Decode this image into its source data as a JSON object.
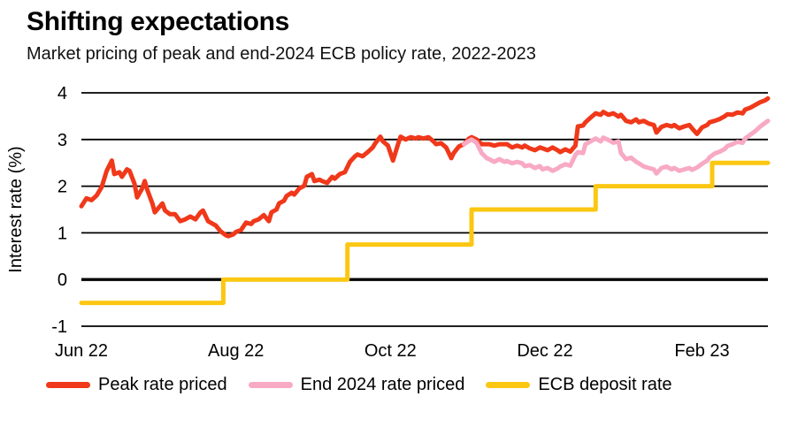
{
  "page": {
    "background": "#ffffff"
  },
  "chart_data": {
    "type": "line",
    "title": "Shifting expectations",
    "subtitle": "Market pricing of peak and end-2024 ECB policy rate, 2022-2023",
    "xlabel": "",
    "ylabel": "Interest rate (%)",
    "x_unit": "days since 2022-06-01",
    "xlim": [
      0,
      271
    ],
    "ylim": [
      -1,
      4
    ],
    "y_ticks": [
      4,
      3,
      2,
      1,
      0,
      -1
    ],
    "x_ticks": [
      {
        "pos": 0,
        "label": "Jun 22"
      },
      {
        "pos": 61,
        "label": "Aug 22"
      },
      {
        "pos": 122,
        "label": "Oct 22"
      },
      {
        "pos": 183,
        "label": "Dec 22"
      },
      {
        "pos": 245,
        "label": "Feb 23"
      }
    ],
    "grid": "horizontal",
    "zero_line_emphasis": true,
    "legend_position": "bottom",
    "draw_order": [
      2,
      0,
      1
    ],
    "series": [
      {
        "name": "Peak rate priced",
        "color": "#F0381A",
        "points": [
          [
            0,
            1.57
          ],
          [
            2,
            1.74
          ],
          [
            4,
            1.7
          ],
          [
            6,
            1.8
          ],
          [
            8,
            1.98
          ],
          [
            10,
            2.33
          ],
          [
            12,
            2.55
          ],
          [
            13,
            2.26
          ],
          [
            15,
            2.3
          ],
          [
            16,
            2.2
          ],
          [
            18,
            2.36
          ],
          [
            19,
            2.33
          ],
          [
            21,
            2.05
          ],
          [
            22,
            1.76
          ],
          [
            24,
            1.95
          ],
          [
            25,
            2.11
          ],
          [
            26,
            1.92
          ],
          [
            28,
            1.63
          ],
          [
            29,
            1.44
          ],
          [
            31,
            1.57
          ],
          [
            32,
            1.63
          ],
          [
            33,
            1.48
          ],
          [
            35,
            1.4
          ],
          [
            37,
            1.4
          ],
          [
            39,
            1.25
          ],
          [
            41,
            1.29
          ],
          [
            43,
            1.35
          ],
          [
            45,
            1.29
          ],
          [
            47,
            1.44
          ],
          [
            48,
            1.48
          ],
          [
            50,
            1.25
          ],
          [
            52,
            1.19
          ],
          [
            53,
            1.16
          ],
          [
            55,
            1.03
          ],
          [
            57,
            0.95
          ],
          [
            58,
            0.93
          ],
          [
            60,
            0.97
          ],
          [
            61,
            1.02
          ],
          [
            63,
            1.06
          ],
          [
            65,
            1.22
          ],
          [
            67,
            1.19
          ],
          [
            68,
            1.25
          ],
          [
            70,
            1.29
          ],
          [
            72,
            1.38
          ],
          [
            74,
            1.25
          ],
          [
            75,
            1.44
          ],
          [
            77,
            1.5
          ],
          [
            78,
            1.63
          ],
          [
            80,
            1.69
          ],
          [
            81,
            1.79
          ],
          [
            83,
            1.86
          ],
          [
            84,
            1.82
          ],
          [
            86,
            1.95
          ],
          [
            88,
            2.01
          ],
          [
            89,
            2.2
          ],
          [
            91,
            2.26
          ],
          [
            92,
            2.11
          ],
          [
            94,
            2.14
          ],
          [
            95,
            2.11
          ],
          [
            97,
            2.07
          ],
          [
            99,
            2.2
          ],
          [
            100,
            2.16
          ],
          [
            102,
            2.26
          ],
          [
            104,
            2.3
          ],
          [
            106,
            2.52
          ],
          [
            108,
            2.64
          ],
          [
            109,
            2.68
          ],
          [
            111,
            2.64
          ],
          [
            113,
            2.73
          ],
          [
            115,
            2.83
          ],
          [
            116,
            2.92
          ],
          [
            118,
            3.06
          ],
          [
            119,
            2.96
          ],
          [
            121,
            2.87
          ],
          [
            123,
            2.55
          ],
          [
            125,
            2.9
          ],
          [
            126,
            3.06
          ],
          [
            128,
            3.0
          ],
          [
            130,
            3.05
          ],
          [
            132,
            3.02
          ],
          [
            133,
            3.05
          ],
          [
            135,
            3.02
          ],
          [
            137,
            3.05
          ],
          [
            139,
            2.96
          ],
          [
            140,
            2.9
          ],
          [
            142,
            2.92
          ],
          [
            144,
            2.83
          ],
          [
            146,
            2.6
          ],
          [
            147,
            2.71
          ],
          [
            149,
            2.85
          ],
          [
            151,
            2.9
          ],
          [
            153,
            3.02
          ],
          [
            154,
            3.05
          ],
          [
            156,
            3.0
          ],
          [
            158,
            2.9
          ],
          [
            161,
            2.9
          ],
          [
            163,
            2.87
          ],
          [
            165,
            2.9
          ],
          [
            168,
            2.9
          ],
          [
            170,
            2.83
          ],
          [
            172,
            2.87
          ],
          [
            174,
            2.83
          ],
          [
            175,
            2.87
          ],
          [
            177,
            2.81
          ],
          [
            179,
            2.77
          ],
          [
            181,
            2.83
          ],
          [
            182,
            2.81
          ],
          [
            184,
            2.77
          ],
          [
            186,
            2.83
          ],
          [
            188,
            2.77
          ],
          [
            189,
            2.73
          ],
          [
            191,
            2.79
          ],
          [
            193,
            2.74
          ],
          [
            195,
            2.87
          ],
          [
            196,
            3.28
          ],
          [
            198,
            3.3
          ],
          [
            199,
            3.37
          ],
          [
            201,
            3.47
          ],
          [
            203,
            3.56
          ],
          [
            205,
            3.53
          ],
          [
            206,
            3.59
          ],
          [
            208,
            3.53
          ],
          [
            210,
            3.56
          ],
          [
            212,
            3.49
          ],
          [
            213,
            3.53
          ],
          [
            215,
            3.4
          ],
          [
            217,
            3.37
          ],
          [
            219,
            3.43
          ],
          [
            220,
            3.37
          ],
          [
            222,
            3.4
          ],
          [
            224,
            3.34
          ],
          [
            226,
            3.31
          ],
          [
            227,
            3.15
          ],
          [
            229,
            3.27
          ],
          [
            231,
            3.31
          ],
          [
            233,
            3.28
          ],
          [
            234,
            3.31
          ],
          [
            236,
            3.24
          ],
          [
            238,
            3.28
          ],
          [
            240,
            3.31
          ],
          [
            241,
            3.24
          ],
          [
            243,
            3.12
          ],
          [
            245,
            3.26
          ],
          [
            247,
            3.31
          ],
          [
            248,
            3.37
          ],
          [
            250,
            3.4
          ],
          [
            252,
            3.44
          ],
          [
            254,
            3.5
          ],
          [
            255,
            3.54
          ],
          [
            257,
            3.53
          ],
          [
            259,
            3.58
          ],
          [
            261,
            3.56
          ],
          [
            262,
            3.64
          ],
          [
            264,
            3.68
          ],
          [
            266,
            3.74
          ],
          [
            268,
            3.8
          ],
          [
            270,
            3.84
          ],
          [
            271,
            3.88
          ]
        ]
      },
      {
        "name": "End 2024 rate priced",
        "color": "#F8A9C3",
        "points": [
          [
            151,
            2.9
          ],
          [
            153,
            2.97
          ],
          [
            154,
            3.0
          ],
          [
            156,
            2.93
          ],
          [
            158,
            2.71
          ],
          [
            160,
            2.6
          ],
          [
            161,
            2.58
          ],
          [
            163,
            2.52
          ],
          [
            165,
            2.58
          ],
          [
            167,
            2.52
          ],
          [
            168,
            2.54
          ],
          [
            170,
            2.49
          ],
          [
            172,
            2.52
          ],
          [
            174,
            2.49
          ],
          [
            175,
            2.43
          ],
          [
            177,
            2.45
          ],
          [
            179,
            2.39
          ],
          [
            181,
            2.43
          ],
          [
            182,
            2.36
          ],
          [
            184,
            2.39
          ],
          [
            186,
            2.33
          ],
          [
            188,
            2.38
          ],
          [
            189,
            2.42
          ],
          [
            191,
            2.47
          ],
          [
            193,
            2.44
          ],
          [
            195,
            2.67
          ],
          [
            196,
            2.73
          ],
          [
            198,
            2.71
          ],
          [
            199,
            2.9
          ],
          [
            201,
            2.96
          ],
          [
            203,
            3.02
          ],
          [
            205,
            2.96
          ],
          [
            206,
            3.04
          ],
          [
            208,
            2.99
          ],
          [
            210,
            2.93
          ],
          [
            212,
            2.96
          ],
          [
            213,
            2.71
          ],
          [
            215,
            2.58
          ],
          [
            217,
            2.61
          ],
          [
            219,
            2.52
          ],
          [
            220,
            2.49
          ],
          [
            222,
            2.42
          ],
          [
            224,
            2.39
          ],
          [
            226,
            2.36
          ],
          [
            227,
            2.27
          ],
          [
            229,
            2.39
          ],
          [
            231,
            2.42
          ],
          [
            233,
            2.36
          ],
          [
            234,
            2.39
          ],
          [
            236,
            2.33
          ],
          [
            238,
            2.36
          ],
          [
            240,
            2.39
          ],
          [
            241,
            2.35
          ],
          [
            243,
            2.4
          ],
          [
            245,
            2.48
          ],
          [
            247,
            2.55
          ],
          [
            248,
            2.62
          ],
          [
            250,
            2.7
          ],
          [
            252,
            2.74
          ],
          [
            254,
            2.8
          ],
          [
            255,
            2.86
          ],
          [
            257,
            2.9
          ],
          [
            259,
            2.95
          ],
          [
            261,
            2.93
          ],
          [
            262,
            3.02
          ],
          [
            264,
            3.1
          ],
          [
            266,
            3.18
          ],
          [
            268,
            3.28
          ],
          [
            270,
            3.36
          ],
          [
            271,
            3.4
          ]
        ]
      },
      {
        "name": "ECB deposit rate",
        "color": "#FBC712",
        "points": [
          [
            0,
            -0.5
          ],
          [
            56,
            -0.5
          ],
          [
            56,
            0
          ],
          [
            105,
            0
          ],
          [
            105,
            0.75
          ],
          [
            154,
            0.75
          ],
          [
            154,
            1.5
          ],
          [
            203,
            1.5
          ],
          [
            203,
            2.0
          ],
          [
            249,
            2.0
          ],
          [
            249,
            2.5
          ],
          [
            271,
            2.5
          ]
        ]
      }
    ]
  }
}
